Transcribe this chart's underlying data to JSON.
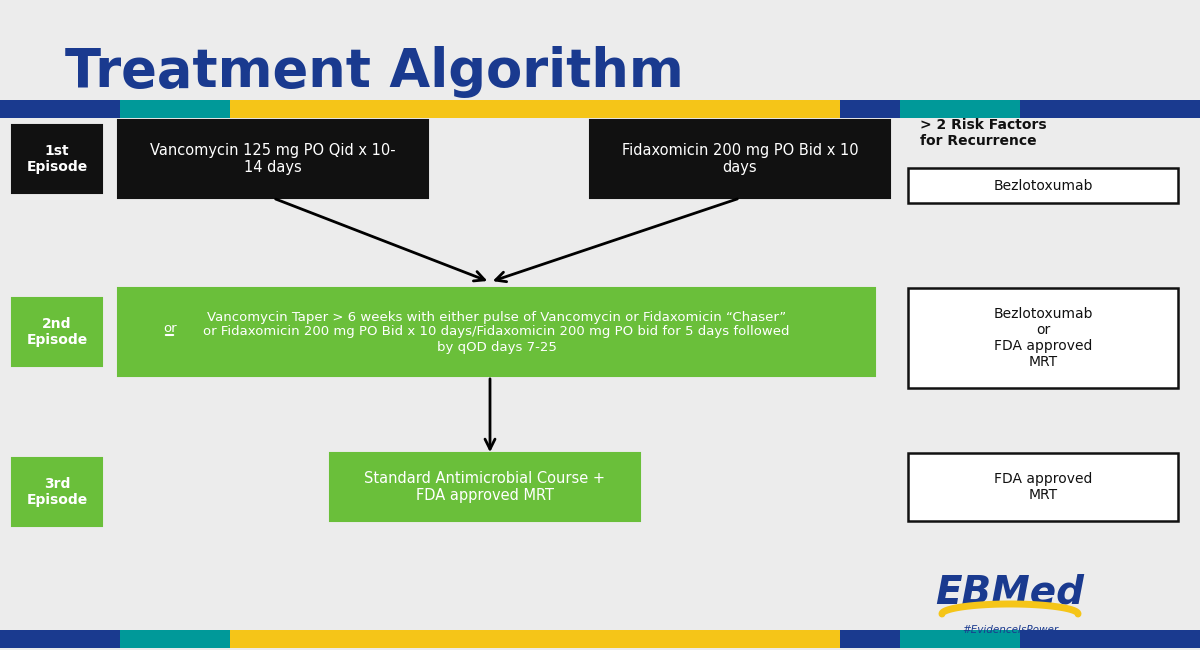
{
  "title": "Treatment Algorithm",
  "title_color": "#1a3a8f",
  "title_fontsize": 36,
  "bg_color": "#f0f0f0",
  "episode_labels": [
    "1st\nEpisode",
    "2nd\nEpisode",
    "3rd\nEpisode"
  ],
  "box1a_text": "Vancomycin 125 mg PO Qid x 10-\n14 days",
  "box1b_text": "Fidaxomicin 200 mg PO Bid x 10\ndays",
  "box2_text": "Vancomycin Taper > 6 weeks with either pulse of Vancomycin or Fidaxomicin “Chaser”\nor Fidaxomicin 200 mg PO Bid x 10 days/Fidaxomicin 200 mg PO bid for 5 days followed\nby qOD days 7-25",
  "box2_or_text": "or",
  "box3_text": "Standard Antimicrobial Course +\nFDA approved MRT",
  "side_title": "> 2 Risk Factors\nfor Recurrence",
  "side1_text": "Bezlotoxumab",
  "side2_text": "Bezlotoxumab\nor\nFDA approved\nMRT",
  "side3_text": "FDA approved\nMRT",
  "ebmed_text": "EBMed",
  "ebmed_subtext": "#EvidenceIsPower",
  "green_color": "#6abf3a",
  "black_box_color": "#111111",
  "white_text": "#ffffff",
  "black_text": "#111111",
  "teal_color": "#009999",
  "yellow_color": "#f5c518",
  "blue_color": "#1a3a8f",
  "light_gray": "#e8e8e8"
}
